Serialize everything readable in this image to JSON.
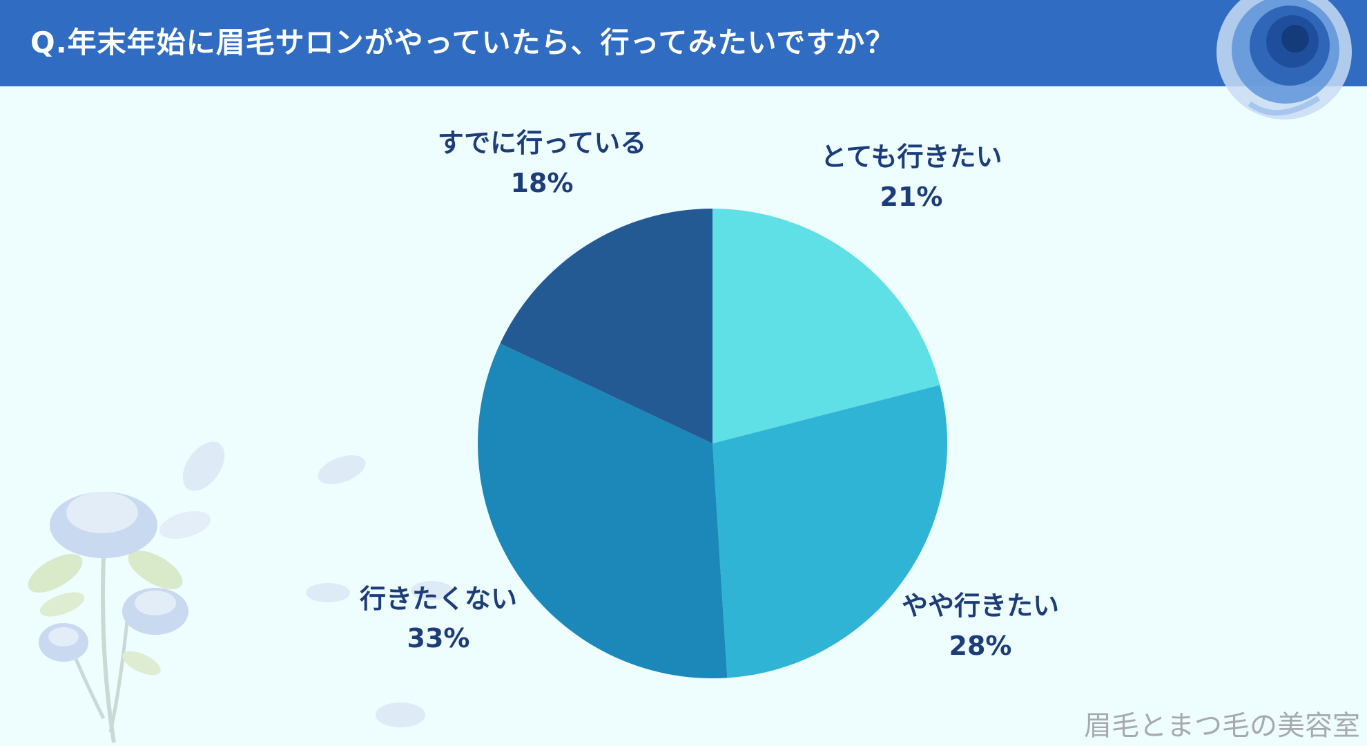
{
  "header": {
    "question": "Q.年末年始に眉毛サロンがやっていたら、行ってみたいですか？"
  },
  "chart_data": {
    "type": "pie",
    "title": "Q.年末年始に眉毛サロンがやっていたら、行ってみたいですか？",
    "categories": [
      "とても行きたい",
      "やや行きたい",
      "行きたくない",
      "すでに行っている"
    ],
    "values": [
      21,
      28,
      33,
      18
    ],
    "value_labels": [
      "21%",
      "28%",
      "33%",
      "18%"
    ],
    "colors": [
      "#5ee0e6",
      "#2fb4d6",
      "#1b88b9",
      "#245a93"
    ],
    "label_color": "#1c3d7a",
    "start_angle_deg": 0,
    "direction": "clockwise"
  },
  "watermark": "眉毛とまつ毛の美容室"
}
